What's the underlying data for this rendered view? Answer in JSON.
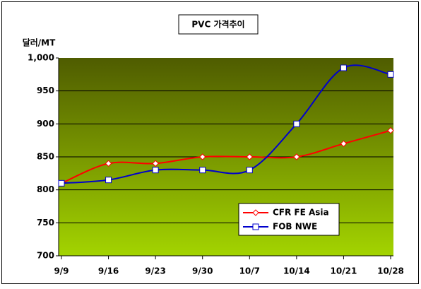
{
  "chart_data": {
    "type": "line",
    "title": "PVC 가격추이",
    "y_label": "달러/MT",
    "categories": [
      "9/9",
      "9/16",
      "9/23",
      "9/30",
      "10/7",
      "10/14",
      "10/21",
      "10/28"
    ],
    "series": [
      {
        "name": "CFR FE Asia",
        "color": "#ff0000",
        "values": [
          810,
          840,
          840,
          850,
          850,
          850,
          870,
          890
        ]
      },
      {
        "name": "FOB NWE",
        "color": "#0000cc",
        "values": [
          810,
          815,
          830,
          830,
          830,
          900,
          985,
          975
        ]
      }
    ],
    "ylim": [
      700,
      1000
    ],
    "yticks": [
      700,
      750,
      800,
      850,
      900,
      950,
      {
        "value": 1000,
        "label": "1,000"
      }
    ],
    "grid": true
  }
}
